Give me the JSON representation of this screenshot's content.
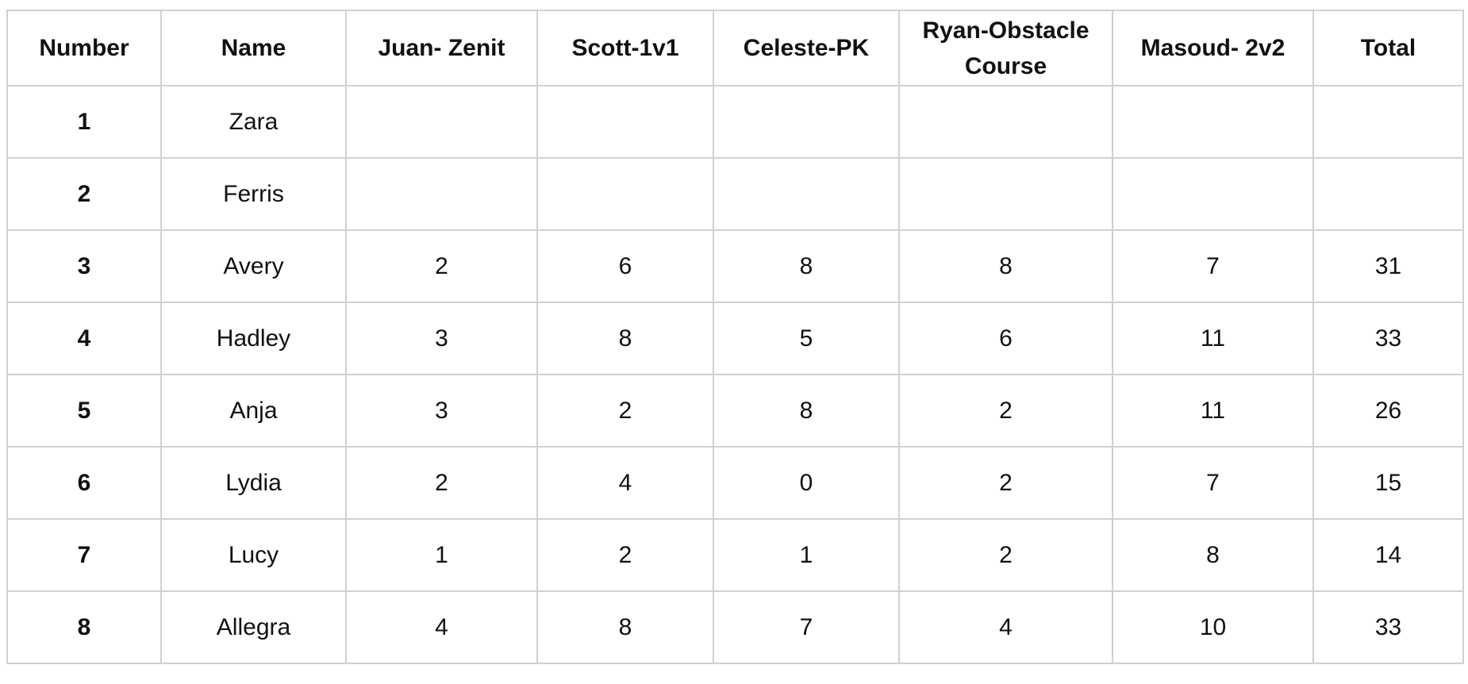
{
  "table": {
    "header": [
      "Number",
      "Name",
      "Juan- Zenit",
      "Scott-1v1",
      "Celeste-PK",
      "Ryan-Obstacle Course",
      "Masoud- 2v2",
      "Total"
    ],
    "rows": [
      [
        1,
        "Zara"
      ],
      [
        2,
        "Ferris"
      ],
      [
        3,
        "Avery",
        2,
        6,
        8,
        8,
        7,
        31
      ],
      [
        4,
        "Hadley",
        3,
        8,
        5,
        6,
        11,
        33
      ],
      [
        5,
        "Anja",
        3,
        2,
        8,
        2,
        11,
        26
      ],
      [
        6,
        "Lydia",
        2,
        4,
        0,
        2,
        7,
        15
      ],
      [
        7,
        "Lucy",
        1,
        2,
        1,
        2,
        8,
        14
      ],
      [
        8,
        "Allegra",
        4,
        8,
        7,
        4,
        10,
        33
      ]
    ]
  }
}
